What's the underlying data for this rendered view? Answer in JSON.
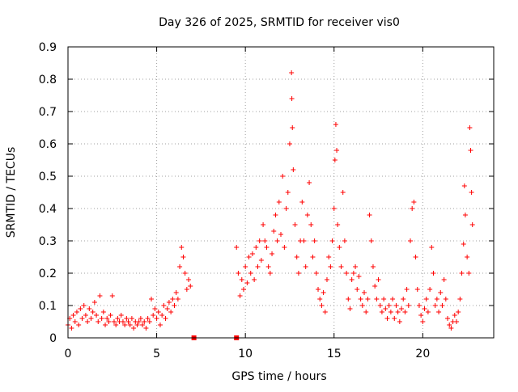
{
  "chart_data": {
    "type": "scatter",
    "title": "Day 326 of 2025, SRMTID for receiver vis0",
    "xlabel": "GPS time / hours",
    "ylabel": "SRMTID / TECUs",
    "xlim": [
      0,
      24
    ],
    "ylim": [
      0,
      0.9
    ],
    "xticks": [
      0,
      5,
      10,
      15,
      20
    ],
    "yticks": [
      0,
      0.1,
      0.2,
      0.3,
      0.4,
      0.5,
      0.6,
      0.7,
      0.8,
      0.9
    ],
    "grid": true,
    "marker": "+",
    "color": "#ff0000",
    "series": [
      {
        "name": "SRMTID",
        "points": [
          [
            0.0,
            0.04
          ],
          [
            0.1,
            0.06
          ],
          [
            0.2,
            0.03
          ],
          [
            0.3,
            0.07
          ],
          [
            0.4,
            0.05
          ],
          [
            0.5,
            0.08
          ],
          [
            0.6,
            0.04
          ],
          [
            0.7,
            0.09
          ],
          [
            0.8,
            0.06
          ],
          [
            0.9,
            0.1
          ],
          [
            1.0,
            0.07
          ],
          [
            1.1,
            0.05
          ],
          [
            1.2,
            0.09
          ],
          [
            1.3,
            0.06
          ],
          [
            1.4,
            0.08
          ],
          [
            1.5,
            0.11
          ],
          [
            1.6,
            0.07
          ],
          [
            1.7,
            0.05
          ],
          [
            1.8,
            0.13
          ],
          [
            1.9,
            0.06
          ],
          [
            2.0,
            0.08
          ],
          [
            2.1,
            0.04
          ],
          [
            2.2,
            0.06
          ],
          [
            2.3,
            0.05
          ],
          [
            2.4,
            0.07
          ],
          [
            2.5,
            0.13
          ],
          [
            2.6,
            0.05
          ],
          [
            2.7,
            0.04
          ],
          [
            2.8,
            0.06
          ],
          [
            2.9,
            0.05
          ],
          [
            3.0,
            0.07
          ],
          [
            3.1,
            0.05
          ],
          [
            3.2,
            0.04
          ],
          [
            3.3,
            0.06
          ],
          [
            3.4,
            0.05
          ],
          [
            3.5,
            0.04
          ],
          [
            3.6,
            0.06
          ],
          [
            3.7,
            0.03
          ],
          [
            3.8,
            0.05
          ],
          [
            3.9,
            0.04
          ],
          [
            4.0,
            0.05
          ],
          [
            4.1,
            0.06
          ],
          [
            4.2,
            0.04
          ],
          [
            4.3,
            0.05
          ],
          [
            4.4,
            0.03
          ],
          [
            4.5,
            0.06
          ],
          [
            4.6,
            0.05
          ],
          [
            4.7,
            0.12
          ],
          [
            4.8,
            0.07
          ],
          [
            4.9,
            0.09
          ],
          [
            5.0,
            0.06
          ],
          [
            5.1,
            0.08
          ],
          [
            5.2,
            0.04
          ],
          [
            5.3,
            0.07
          ],
          [
            5.4,
            0.1
          ],
          [
            5.5,
            0.06
          ],
          [
            5.6,
            0.09
          ],
          [
            5.7,
            0.11
          ],
          [
            5.8,
            0.08
          ],
          [
            5.9,
            0.12
          ],
          [
            6.0,
            0.1
          ],
          [
            6.1,
            0.14
          ],
          [
            6.2,
            0.12
          ],
          [
            6.3,
            0.22
          ],
          [
            6.4,
            0.28
          ],
          [
            6.5,
            0.25
          ],
          [
            6.6,
            0.2
          ],
          [
            6.7,
            0.15
          ],
          [
            6.8,
            0.18
          ],
          [
            6.9,
            0.16
          ],
          [
            9.5,
            0.28
          ],
          [
            9.6,
            0.2
          ],
          [
            9.7,
            0.13
          ],
          [
            9.8,
            0.18
          ],
          [
            9.9,
            0.15
          ],
          [
            10.0,
            0.22
          ],
          [
            10.1,
            0.17
          ],
          [
            10.2,
            0.25
          ],
          [
            10.3,
            0.2
          ],
          [
            10.4,
            0.26
          ],
          [
            10.5,
            0.18
          ],
          [
            10.6,
            0.28
          ],
          [
            10.7,
            0.22
          ],
          [
            10.8,
            0.3
          ],
          [
            10.9,
            0.24
          ],
          [
            11.0,
            0.35
          ],
          [
            11.1,
            0.3
          ],
          [
            11.2,
            0.28
          ],
          [
            11.3,
            0.22
          ],
          [
            11.4,
            0.2
          ],
          [
            11.5,
            0.26
          ],
          [
            11.6,
            0.33
          ],
          [
            11.7,
            0.38
          ],
          [
            11.8,
            0.3
          ],
          [
            11.9,
            0.42
          ],
          [
            12.0,
            0.32
          ],
          [
            12.1,
            0.5
          ],
          [
            12.2,
            0.28
          ],
          [
            12.3,
            0.4
          ],
          [
            12.4,
            0.45
          ],
          [
            12.5,
            0.6
          ],
          [
            12.6,
            0.82
          ],
          [
            12.62,
            0.74
          ],
          [
            12.65,
            0.65
          ],
          [
            12.7,
            0.52
          ],
          [
            12.8,
            0.35
          ],
          [
            12.9,
            0.25
          ],
          [
            13.0,
            0.2
          ],
          [
            13.1,
            0.3
          ],
          [
            13.2,
            0.42
          ],
          [
            13.3,
            0.3
          ],
          [
            13.4,
            0.22
          ],
          [
            13.5,
            0.38
          ],
          [
            13.6,
            0.48
          ],
          [
            13.7,
            0.35
          ],
          [
            13.8,
            0.25
          ],
          [
            13.9,
            0.3
          ],
          [
            14.0,
            0.2
          ],
          [
            14.1,
            0.15
          ],
          [
            14.2,
            0.12
          ],
          [
            14.3,
            0.1
          ],
          [
            14.4,
            0.14
          ],
          [
            14.5,
            0.08
          ],
          [
            14.6,
            0.18
          ],
          [
            14.7,
            0.25
          ],
          [
            14.8,
            0.22
          ],
          [
            14.9,
            0.3
          ],
          [
            15.0,
            0.4
          ],
          [
            15.05,
            0.55
          ],
          [
            15.1,
            0.66
          ],
          [
            15.15,
            0.58
          ],
          [
            15.2,
            0.35
          ],
          [
            15.3,
            0.28
          ],
          [
            15.4,
            0.22
          ],
          [
            15.5,
            0.45
          ],
          [
            15.6,
            0.3
          ],
          [
            15.7,
            0.2
          ],
          [
            15.8,
            0.12
          ],
          [
            15.9,
            0.09
          ],
          [
            16.0,
            0.18
          ],
          [
            16.1,
            0.2
          ],
          [
            16.2,
            0.22
          ],
          [
            16.3,
            0.15
          ],
          [
            16.4,
            0.19
          ],
          [
            16.5,
            0.12
          ],
          [
            16.6,
            0.1
          ],
          [
            16.7,
            0.14
          ],
          [
            16.8,
            0.08
          ],
          [
            16.9,
            0.12
          ],
          [
            17.0,
            0.38
          ],
          [
            17.1,
            0.3
          ],
          [
            17.2,
            0.22
          ],
          [
            17.3,
            0.16
          ],
          [
            17.4,
            0.12
          ],
          [
            17.5,
            0.18
          ],
          [
            17.6,
            0.1
          ],
          [
            17.7,
            0.08
          ],
          [
            17.8,
            0.12
          ],
          [
            17.9,
            0.09
          ],
          [
            18.0,
            0.06
          ],
          [
            18.1,
            0.1
          ],
          [
            18.2,
            0.08
          ],
          [
            18.3,
            0.12
          ],
          [
            18.4,
            0.06
          ],
          [
            18.5,
            0.1
          ],
          [
            18.6,
            0.08
          ],
          [
            18.7,
            0.05
          ],
          [
            18.8,
            0.09
          ],
          [
            18.9,
            0.12
          ],
          [
            19.0,
            0.08
          ],
          [
            19.1,
            0.15
          ],
          [
            19.2,
            0.1
          ],
          [
            19.3,
            0.3
          ],
          [
            19.4,
            0.4
          ],
          [
            19.5,
            0.42
          ],
          [
            19.6,
            0.25
          ],
          [
            19.7,
            0.15
          ],
          [
            19.8,
            0.1
          ],
          [
            19.9,
            0.07
          ],
          [
            20.0,
            0.05
          ],
          [
            20.1,
            0.09
          ],
          [
            20.2,
            0.12
          ],
          [
            20.3,
            0.08
          ],
          [
            20.4,
            0.15
          ],
          [
            20.5,
            0.28
          ],
          [
            20.6,
            0.2
          ],
          [
            20.7,
            0.1
          ],
          [
            20.8,
            0.12
          ],
          [
            20.9,
            0.08
          ],
          [
            21.0,
            0.14
          ],
          [
            21.1,
            0.1
          ],
          [
            21.2,
            0.18
          ],
          [
            21.3,
            0.12
          ],
          [
            21.4,
            0.06
          ],
          [
            21.5,
            0.04
          ],
          [
            21.6,
            0.03
          ],
          [
            21.7,
            0.05
          ],
          [
            21.8,
            0.07
          ],
          [
            21.9,
            0.05
          ],
          [
            22.0,
            0.08
          ],
          [
            22.1,
            0.12
          ],
          [
            22.2,
            0.2
          ],
          [
            22.3,
            0.29
          ],
          [
            22.35,
            0.47
          ],
          [
            22.4,
            0.38
          ],
          [
            22.5,
            0.25
          ],
          [
            22.6,
            0.2
          ],
          [
            22.65,
            0.65
          ],
          [
            22.7,
            0.58
          ],
          [
            22.75,
            0.45
          ],
          [
            22.8,
            0.35
          ]
        ]
      }
    ],
    "gap_markers": [
      7.1,
      9.5
    ]
  }
}
